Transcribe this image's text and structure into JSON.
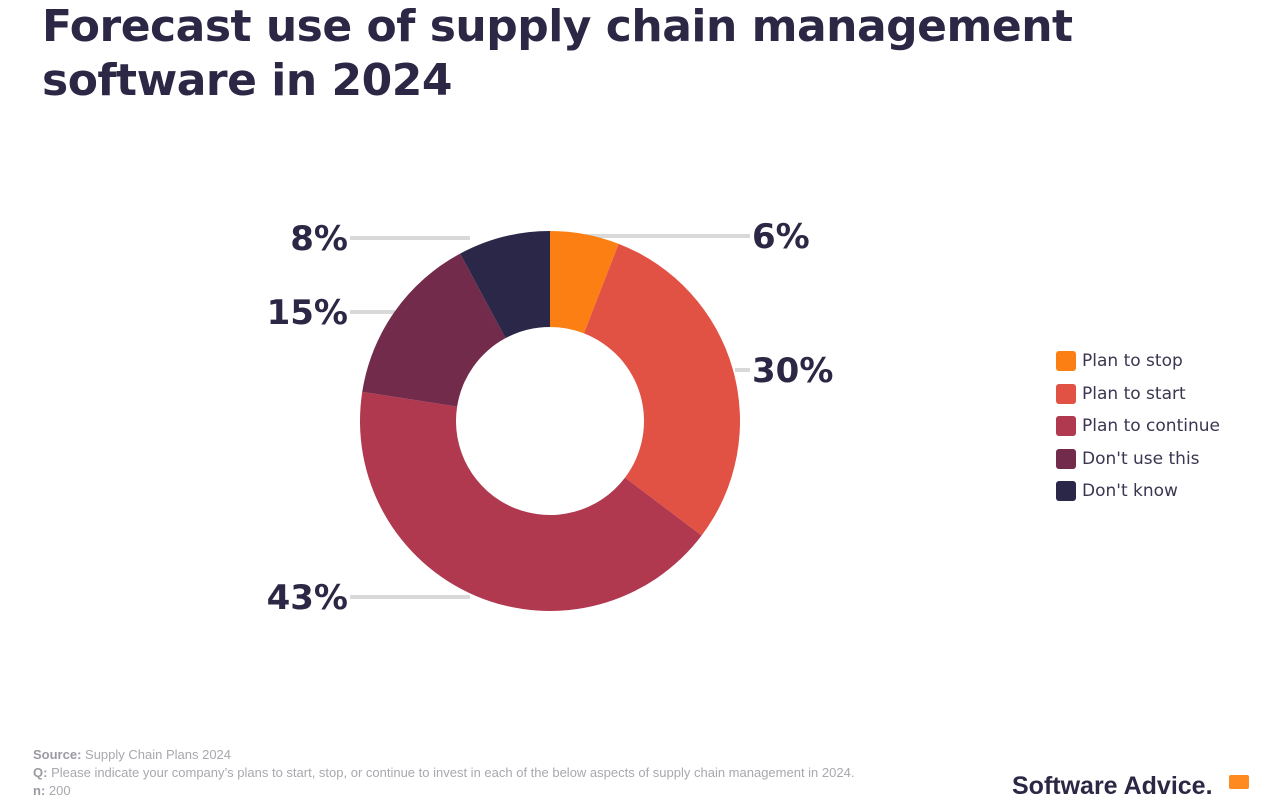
{
  "chart_data": {
    "type": "pie",
    "variant": "donut",
    "title": "Forecast use of supply chain management software in 2024",
    "categories": [
      "Plan to stop",
      "Plan to start",
      "Plan to continue",
      "Don't use this",
      "Don't know"
    ],
    "values": [
      6,
      30,
      43,
      15,
      8
    ],
    "labels": [
      "6%",
      "30%",
      "43%",
      "15%",
      "8%"
    ],
    "colors": [
      "#fb7f12",
      "#e25244",
      "#b0384f",
      "#722b4b",
      "#2b2748"
    ],
    "legend_position": "right"
  },
  "footer": {
    "source_label": "Source:",
    "source": "Supply Chain Plans 2024",
    "q_label": "Q:",
    "question": "Please indicate your company’s plans to start, stop, or continue to invest in each of the below aspects of supply chain management in 2024.",
    "n_label": "n:",
    "n": "200"
  },
  "brand": "Software Advice."
}
